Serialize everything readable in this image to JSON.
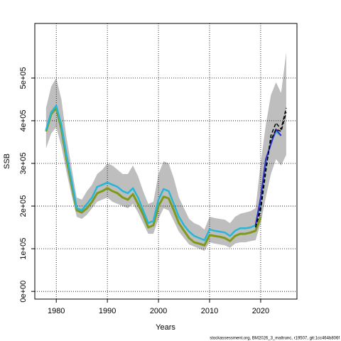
{
  "chart_data": {
    "type": "line",
    "xlabel": "Years",
    "ylabel": "SSB",
    "footer": "stockassessment.org, BM2026_3_maltrunc, r19507, git:1cc464b806f",
    "x": [
      1978,
      1979,
      1980,
      1981,
      1982,
      1983,
      1984,
      1985,
      1986,
      1987,
      1988,
      1989,
      1990,
      1991,
      1992,
      1993,
      1994,
      1995,
      1996,
      1997,
      1998,
      1999,
      2000,
      2001,
      2002,
      2003,
      2004,
      2005,
      2006,
      2007,
      2008,
      2009,
      2010,
      2011,
      2012,
      2013,
      2014,
      2015,
      2016,
      2017,
      2018,
      2019,
      2020,
      2021,
      2022,
      2023,
      2024,
      2025
    ],
    "band": {
      "color": "#bebebe",
      "upper": [
        430000,
        480000,
        500000,
        450000,
        360000,
        290000,
        220000,
        215000,
        235000,
        250000,
        275000,
        285000,
        300000,
        295000,
        285000,
        275000,
        275000,
        295000,
        270000,
        235000,
        205000,
        210000,
        275000,
        305000,
        300000,
        265000,
        220000,
        195000,
        170000,
        160000,
        155000,
        145000,
        175000,
        172000,
        170000,
        168000,
        160000,
        175000,
        182000,
        185000,
        188000,
        195000,
        300000,
        390000,
        460000,
        490000,
        465000,
        560000
      ],
      "lower": [
        335000,
        370000,
        385000,
        340000,
        280000,
        225000,
        175000,
        170000,
        180000,
        195000,
        210000,
        215000,
        220000,
        210000,
        205000,
        200000,
        195000,
        205000,
        185000,
        160000,
        135000,
        135000,
        170000,
        195000,
        190000,
        165000,
        140000,
        125000,
        110000,
        105000,
        100000,
        95000,
        115000,
        112000,
        110000,
        108000,
        102000,
        112000,
        115000,
        115000,
        118000,
        120000,
        160000,
        220000,
        275000,
        310000,
        295000,
        320000
      ]
    },
    "series": [
      {
        "color": "#7f9a1a",
        "width": 3,
        "values": [
          375000,
          415000,
          430000,
          380000,
          310000,
          250000,
          190000,
          185000,
          195000,
          210000,
          230000,
          235000,
          242000,
          235000,
          230000,
          220000,
          215000,
          228000,
          205000,
          180000,
          150000,
          155000,
          200000,
          222000,
          218000,
          190000,
          160000,
          142000,
          125000,
          115000,
          112000,
          108000,
          132000,
          130000,
          128000,
          125000,
          118000,
          130000,
          135000,
          135000,
          138000,
          142000,
          175000,
          null,
          null,
          null,
          null,
          null
        ]
      },
      {
        "color": "#29b6d6",
        "width": 2.5,
        "values": [
          378000,
          420000,
          435000,
          390000,
          320000,
          260000,
          195000,
          190000,
          205000,
          220000,
          245000,
          250000,
          255000,
          250000,
          245000,
          235000,
          230000,
          242000,
          220000,
          190000,
          160000,
          165000,
          215000,
          240000,
          235000,
          205000,
          175000,
          155000,
          140000,
          130000,
          125000,
          120000,
          145000,
          142000,
          140000,
          138000,
          130000,
          142000,
          148000,
          148000,
          150000,
          155000,
          210000,
          300000,
          350000,
          375000,
          365000,
          null
        ]
      },
      {
        "color": "#3b2fc9",
        "width": 2,
        "values": [
          null,
          null,
          null,
          null,
          null,
          null,
          null,
          null,
          null,
          null,
          null,
          null,
          null,
          null,
          null,
          null,
          null,
          null,
          null,
          null,
          null,
          null,
          null,
          null,
          null,
          null,
          null,
          null,
          null,
          null,
          null,
          null,
          null,
          null,
          null,
          null,
          null,
          null,
          null,
          null,
          null,
          155000,
          220000,
          310000,
          345000,
          380000,
          365000,
          null
        ]
      },
      {
        "color": "#000000",
        "width": 1.5,
        "dash": true,
        "values": [
          null,
          null,
          null,
          null,
          null,
          null,
          null,
          null,
          null,
          null,
          null,
          null,
          null,
          null,
          null,
          null,
          null,
          null,
          null,
          null,
          null,
          null,
          null,
          null,
          null,
          null,
          null,
          null,
          null,
          null,
          null,
          null,
          null,
          null,
          null,
          null,
          null,
          null,
          null,
          null,
          null,
          150000,
          190000,
          280000,
          365000,
          395000,
          380000,
          430000
        ]
      },
      {
        "color": "#000000",
        "width": 1.5,
        "dash": true,
        "values": [
          null,
          null,
          null,
          null,
          null,
          null,
          null,
          null,
          null,
          null,
          null,
          null,
          null,
          null,
          null,
          null,
          null,
          null,
          null,
          null,
          null,
          null,
          null,
          null,
          null,
          null,
          null,
          null,
          null,
          null,
          null,
          null,
          null,
          null,
          null,
          null,
          null,
          null,
          null,
          null,
          null,
          150000,
          200000,
          290000,
          355000,
          380000,
          375000,
          420000
        ]
      }
    ],
    "xlim": [
      1975.8,
      2027.1
    ],
    "ylim": [
      -18000,
      628000
    ],
    "xticks": [
      1980,
      1990,
      2000,
      2010,
      2020
    ],
    "yticks": [
      {
        "value": 0,
        "label": "0e+00"
      },
      {
        "value": 100000,
        "label": "1e+05"
      },
      {
        "value": 200000,
        "label": "2e+05"
      },
      {
        "value": 300000,
        "label": "3e+05"
      },
      {
        "value": 400000,
        "label": "4e+05"
      },
      {
        "value": 500000,
        "label": "5e+05"
      }
    ],
    "grid": true
  }
}
